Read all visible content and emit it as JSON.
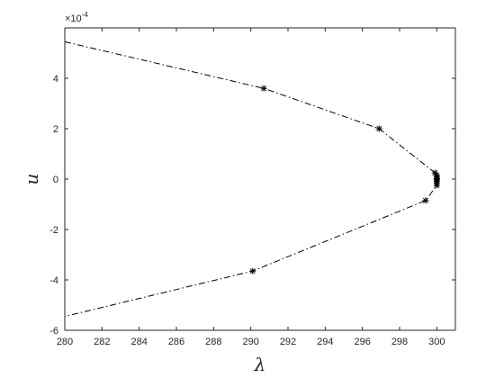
{
  "chart_data": {
    "type": "line",
    "title": "",
    "xlabel": "λ",
    "ylabel": "u",
    "xlim": [
      280,
      301
    ],
    "ylim": [
      -6,
      6
    ],
    "y_scale_exponent_label": "×10",
    "y_scale_exponent": "-4",
    "x_ticks": [
      "280",
      "282",
      "284",
      "286",
      "288",
      "290",
      "292",
      "294",
      "296",
      "298",
      "300"
    ],
    "y_ticks": [
      "-6",
      "-4",
      "-2",
      "0",
      "2",
      "4"
    ],
    "grid": false,
    "series": [
      {
        "line_style": "dash-dot",
        "marker": "asterisk",
        "color": "#000000",
        "x": [
          280,
          290.7,
          296.9,
          299.9,
          300.0,
          300.0,
          300.0,
          300.0,
          300.0,
          300.0,
          300.0,
          299.4,
          290.1,
          280
        ],
        "y": [
          5.45,
          3.6,
          2.0,
          0.25,
          0.15,
          0.08,
          0.02,
          -0.02,
          -0.08,
          -0.15,
          -0.25,
          -0.85,
          -3.65,
          -5.45
        ],
        "markers": [
          false,
          true,
          true,
          true,
          true,
          true,
          true,
          true,
          true,
          true,
          true,
          true,
          true,
          false
        ]
      }
    ]
  }
}
